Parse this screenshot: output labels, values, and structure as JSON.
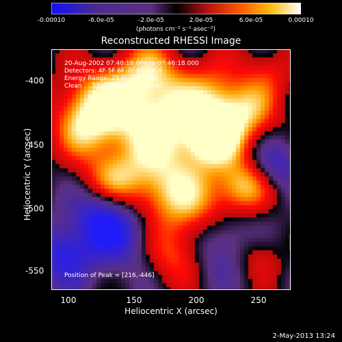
{
  "colorbar": {
    "tick_labels": [
      "-0.00010",
      "-6.0e-05",
      "-2.0e-05",
      "2.0e-05",
      "6.0e-05",
      "0.00010"
    ],
    "units": "(photons cm⁻² s⁻¹ asec⁻²)",
    "colors": [
      "#1010ff",
      "#4b2c90",
      "#5c2f80",
      "#000000",
      "#b21010",
      "#ff5a00",
      "#ffbf10",
      "#ffffff"
    ]
  },
  "title": "Reconstructed RHESSI Image",
  "info": {
    "line1": "20-Aug-2002 07:40:18.000 to 07:46:18.000",
    "line2": "Detectors: 4F 5F 6F 7F 8F, Att 0",
    "line3": "Energy Range: 25.0 - 50.0 keV",
    "line4": "Clean     Total counts: 4.20E+03"
  },
  "peak_text": "Position of Peak = [216,-446]",
  "x_axis": {
    "title": "Heliocentric X (arcsec)",
    "ticks": [
      "100",
      "150",
      "200",
      "250"
    ]
  },
  "y_axis": {
    "title": "Heliocentric Y (arcsec)",
    "ticks": [
      "-400",
      "-450",
      "-500",
      "-550"
    ]
  },
  "footer_date": "2-May-2013 13:24"
}
